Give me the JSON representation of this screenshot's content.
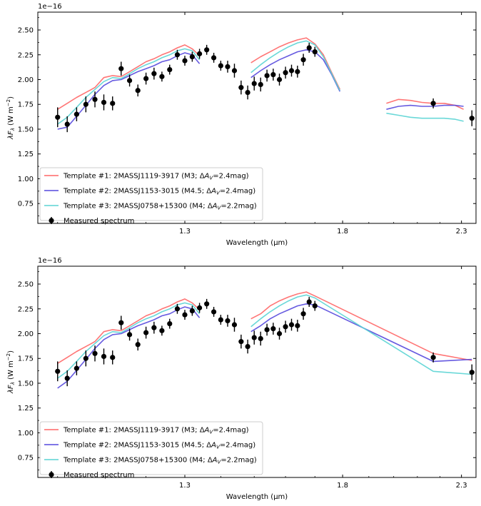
{
  "chart_data": [
    {
      "type": "line",
      "panel": "top",
      "ylabel": "λF_λ (W m^-2)",
      "ylabel_parts": {
        "lam": "λ",
        "F": "F",
        "sub": "λ",
        "unit": " (W m",
        "sup": "−2",
        "close": ")"
      },
      "xlabel": "Wavelength (μm)",
      "y_scale_label": "1e−16",
      "x_scale": "log",
      "xlim": [
        0.96,
        2.37
      ],
      "ylim": [
        0.55,
        2.68
      ],
      "x_ticks": [
        1.3,
        1.8,
        2.3
      ],
      "x_tick_labels": [
        "1.3",
        "1.8",
        "2.3"
      ],
      "y_ticks": [
        0.75,
        1.0,
        1.25,
        1.5,
        1.75,
        2.0,
        2.25,
        2.5
      ],
      "y_tick_labels": [
        "0.75",
        "1.00",
        "1.25",
        "1.50",
        "1.75",
        "2.00",
        "2.25",
        "2.50"
      ],
      "grid": false,
      "legend_position": "lower-left",
      "series": [
        {
          "name": "Template #1: 2MASSJ1119-3917 (M3; ΔA_V=2.4mag)",
          "legend": {
            "pre": "Template #1: 2MASSJ1119-3917 (M3; Δ",
            "A": "A",
            "sub": "V",
            "post": "=2.4mag)"
          },
          "color": "#ff6666",
          "segments": [
            {
              "x": [
                1.0,
                1.02,
                1.04,
                1.06,
                1.08,
                1.1,
                1.12,
                1.14,
                1.16,
                1.18,
                1.2,
                1.22,
                1.24,
                1.26,
                1.28,
                1.3,
                1.32,
                1.34
              ],
              "y": [
                1.7,
                1.76,
                1.82,
                1.87,
                1.92,
                2.02,
                2.04,
                2.03,
                2.08,
                2.13,
                2.18,
                2.21,
                2.25,
                2.28,
                2.32,
                2.35,
                2.31,
                2.24
              ]
            },
            {
              "x": [
                1.49,
                1.52,
                1.55,
                1.58,
                1.61,
                1.64,
                1.67,
                1.7,
                1.73,
                1.76,
                1.79
              ],
              "y": [
                2.17,
                2.23,
                2.28,
                2.33,
                2.37,
                2.4,
                2.42,
                2.36,
                2.25,
                2.07,
                1.9
              ]
            },
            {
              "x": [
                1.97,
                2.02,
                2.07,
                2.12,
                2.17,
                2.22,
                2.27,
                2.31
              ],
              "y": [
                1.76,
                1.8,
                1.79,
                1.77,
                1.76,
                1.76,
                1.74,
                1.7
              ]
            }
          ]
        },
        {
          "name": "Template #2: 2MASSJ1153-3015 (M4.5; ΔA_V=2.4mag)",
          "legend": {
            "pre": "Template #2: 2MASSJ1153-3015 (M4.5; Δ",
            "A": "A",
            "sub": "V",
            "post": "=2.4mag)"
          },
          "color": "#5548dd",
          "segments": [
            {
              "x": [
                1.0,
                1.02,
                1.04,
                1.06,
                1.08,
                1.1,
                1.12,
                1.14,
                1.16,
                1.18,
                1.2,
                1.22,
                1.24,
                1.26,
                1.28,
                1.3,
                1.32,
                1.34
              ],
              "y": [
                1.5,
                1.52,
                1.63,
                1.74,
                1.85,
                1.94,
                1.99,
                2.0,
                2.04,
                2.08,
                2.11,
                2.14,
                2.18,
                2.2,
                2.24,
                2.27,
                2.25,
                2.16
              ]
            },
            {
              "x": [
                1.49,
                1.52,
                1.55,
                1.58,
                1.61,
                1.64,
                1.67,
                1.7,
                1.73,
                1.76,
                1.79
              ],
              "y": [
                2.02,
                2.09,
                2.15,
                2.2,
                2.24,
                2.28,
                2.3,
                2.28,
                2.2,
                2.05,
                1.88
              ]
            },
            {
              "x": [
                1.97,
                2.02,
                2.07,
                2.12,
                2.17,
                2.22,
                2.27,
                2.31
              ],
              "y": [
                1.7,
                1.73,
                1.74,
                1.73,
                1.73,
                1.74,
                1.74,
                1.73
              ]
            }
          ]
        },
        {
          "name": "Template #3: 2MASSJ0758+15300 (M4; ΔA_V=2.2mag)",
          "legend": {
            "pre": "Template #3: 2MASSJ0758+15300 (M4; Δ",
            "A": "A",
            "sub": "V",
            "post": "=2.2mag)"
          },
          "color": "#5ad4d4",
          "segments": [
            {
              "x": [
                1.0,
                1.02,
                1.04,
                1.06,
                1.08,
                1.1,
                1.12,
                1.14,
                1.16,
                1.18,
                1.2,
                1.22,
                1.24,
                1.26,
                1.28,
                1.3,
                1.32,
                1.34
              ],
              "y": [
                1.55,
                1.62,
                1.72,
                1.82,
                1.9,
                1.98,
                2.02,
                2.01,
                2.06,
                2.11,
                2.15,
                2.18,
                2.22,
                2.25,
                2.29,
                2.31,
                2.29,
                2.2
              ]
            },
            {
              "x": [
                1.49,
                1.52,
                1.55,
                1.58,
                1.61,
                1.64,
                1.67,
                1.7,
                1.73,
                1.76,
                1.79
              ],
              "y": [
                2.07,
                2.15,
                2.22,
                2.28,
                2.33,
                2.37,
                2.39,
                2.35,
                2.23,
                2.06,
                1.89
              ]
            },
            {
              "x": [
                1.97,
                2.02,
                2.07,
                2.12,
                2.17,
                2.22,
                2.27,
                2.31
              ],
              "y": [
                1.66,
                1.64,
                1.62,
                1.61,
                1.61,
                1.61,
                1.6,
                1.58
              ]
            }
          ]
        }
      ],
      "measured": {
        "name": "Measured spectrum",
        "color": "#000000",
        "x": [
          1.0,
          1.02,
          1.04,
          1.06,
          1.08,
          1.1,
          1.12,
          1.14,
          1.16,
          1.18,
          1.2,
          1.22,
          1.24,
          1.26,
          1.28,
          1.3,
          1.32,
          1.34,
          1.36,
          1.38,
          1.4,
          1.42,
          1.44,
          1.46,
          1.48,
          1.5,
          1.52,
          1.54,
          1.56,
          1.58,
          1.6,
          1.62,
          1.64,
          1.66,
          1.68,
          1.7,
          2.17,
          2.35
        ],
        "y": [
          1.62,
          1.55,
          1.65,
          1.75,
          1.8,
          1.77,
          1.76,
          2.11,
          1.99,
          1.89,
          2.01,
          2.06,
          2.03,
          2.1,
          2.25,
          2.19,
          2.23,
          2.26,
          2.3,
          2.22,
          2.14,
          2.13,
          2.09,
          1.92,
          1.87,
          1.96,
          1.95,
          2.04,
          2.05,
          2.0,
          2.07,
          2.09,
          2.08,
          2.2,
          2.32,
          2.28,
          1.76,
          1.61
        ],
        "yerr": [
          0.1,
          0.08,
          0.07,
          0.08,
          0.08,
          0.08,
          0.07,
          0.07,
          0.06,
          0.06,
          0.06,
          0.06,
          0.05,
          0.05,
          0.05,
          0.05,
          0.05,
          0.05,
          0.05,
          0.05,
          0.05,
          0.06,
          0.07,
          0.07,
          0.07,
          0.07,
          0.07,
          0.06,
          0.06,
          0.06,
          0.06,
          0.06,
          0.06,
          0.06,
          0.05,
          0.05,
          0.05,
          0.08
        ]
      }
    },
    {
      "type": "line",
      "panel": "bottom",
      "ylabel": "λF_λ (W m^-2)",
      "ylabel_parts": {
        "lam": "λ",
        "F": "F",
        "sub": "λ",
        "unit": " (W m",
        "sup": "−2",
        "close": ")"
      },
      "xlabel": "Wavelength (μm)",
      "y_scale_label": "1e−16",
      "x_scale": "log",
      "xlim": [
        0.96,
        2.37
      ],
      "ylim": [
        0.55,
        2.68
      ],
      "x_ticks": [
        1.3,
        1.8,
        2.3
      ],
      "x_tick_labels": [
        "1.3",
        "1.8",
        "2.3"
      ],
      "y_ticks": [
        0.75,
        1.0,
        1.25,
        1.5,
        1.75,
        2.0,
        2.25,
        2.5
      ],
      "y_tick_labels": [
        "0.75",
        "1.00",
        "1.25",
        "1.50",
        "1.75",
        "2.00",
        "2.25",
        "2.50"
      ],
      "grid": false,
      "legend_position": "lower-left",
      "series": [
        {
          "name": "Template #1: 2MASSJ1119-3917 (M3; ΔA_V=2.4mag)",
          "legend": {
            "pre": "Template #1: 2MASSJ1119-3917 (M3; Δ",
            "A": "A",
            "sub": "V",
            "post": "=2.4mag)"
          },
          "color": "#ff6666",
          "segments": [
            {
              "x": [
                1.0,
                1.02,
                1.04,
                1.06,
                1.08,
                1.1,
                1.12,
                1.14,
                1.16,
                1.18,
                1.2,
                1.22,
                1.24,
                1.26,
                1.28,
                1.3,
                1.32,
                1.34
              ],
              "y": [
                1.7,
                1.76,
                1.82,
                1.87,
                1.92,
                2.02,
                2.04,
                2.03,
                2.08,
                2.13,
                2.18,
                2.21,
                2.25,
                2.28,
                2.32,
                2.35,
                2.31,
                2.24
              ]
            },
            {
              "x": [
                1.49,
                1.52,
                1.55,
                1.58,
                1.61,
                1.64,
                1.67,
                1.7,
                2.17,
                2.35
              ],
              "y": [
                2.15,
                2.2,
                2.28,
                2.33,
                2.37,
                2.4,
                2.42,
                2.38,
                1.8,
                1.73
              ]
            }
          ]
        },
        {
          "name": "Template #2: 2MASSJ1153-3015 (M4.5; ΔA_V=2.4mag)",
          "legend": {
            "pre": "Template #2: 2MASSJ1153-3015 (M4.5; Δ",
            "A": "A",
            "sub": "V",
            "post": "=2.4mag)"
          },
          "color": "#5548dd",
          "segments": [
            {
              "x": [
                1.0,
                1.02,
                1.04,
                1.06,
                1.08,
                1.1,
                1.12,
                1.14,
                1.16,
                1.18,
                1.2,
                1.22,
                1.24,
                1.26,
                1.28,
                1.3,
                1.32,
                1.34
              ],
              "y": [
                1.45,
                1.52,
                1.63,
                1.74,
                1.85,
                1.94,
                1.99,
                2.0,
                2.04,
                2.08,
                2.11,
                2.14,
                2.18,
                2.2,
                2.24,
                2.27,
                2.25,
                2.16
              ]
            },
            {
              "x": [
                1.49,
                1.52,
                1.55,
                1.58,
                1.61,
                1.64,
                1.67,
                1.7,
                2.17,
                2.35
              ],
              "y": [
                2.02,
                2.08,
                2.15,
                2.2,
                2.24,
                2.28,
                2.3,
                2.29,
                1.72,
                1.74
              ]
            }
          ]
        },
        {
          "name": "Template #3: 2MASSJ0758+15300 (M4; ΔA_V=2.2mag)",
          "legend": {
            "pre": "Template #3: 2MASSJ0758+15300 (M4; Δ",
            "A": "A",
            "sub": "V",
            "post": "=2.2mag)"
          },
          "color": "#5ad4d4",
          "segments": [
            {
              "x": [
                1.0,
                1.02,
                1.04,
                1.06,
                1.08,
                1.1,
                1.12,
                1.14,
                1.16,
                1.18,
                1.2,
                1.22,
                1.24,
                1.26,
                1.28,
                1.3,
                1.32,
                1.34
              ],
              "y": [
                1.55,
                1.62,
                1.72,
                1.82,
                1.9,
                1.98,
                2.02,
                2.01,
                2.06,
                2.11,
                2.15,
                2.18,
                2.22,
                2.25,
                2.29,
                2.31,
                2.29,
                2.2
              ]
            },
            {
              "x": [
                1.49,
                1.52,
                1.55,
                1.58,
                1.61,
                1.64,
                1.67,
                1.7,
                2.17,
                2.35
              ],
              "y": [
                2.07,
                2.15,
                2.22,
                2.28,
                2.33,
                2.37,
                2.39,
                2.36,
                1.62,
                1.59
              ]
            }
          ]
        }
      ],
      "measured": {
        "name": "Measured spectrum",
        "color": "#000000",
        "x": [
          1.0,
          1.02,
          1.04,
          1.06,
          1.08,
          1.1,
          1.12,
          1.14,
          1.16,
          1.18,
          1.2,
          1.22,
          1.24,
          1.26,
          1.28,
          1.3,
          1.32,
          1.34,
          1.36,
          1.38,
          1.4,
          1.42,
          1.44,
          1.46,
          1.48,
          1.5,
          1.52,
          1.54,
          1.56,
          1.58,
          1.6,
          1.62,
          1.64,
          1.66,
          1.68,
          1.7,
          2.17,
          2.35
        ],
        "y": [
          1.62,
          1.55,
          1.65,
          1.75,
          1.8,
          1.77,
          1.76,
          2.11,
          1.99,
          1.89,
          2.01,
          2.06,
          2.03,
          2.1,
          2.25,
          2.19,
          2.23,
          2.26,
          2.3,
          2.22,
          2.14,
          2.13,
          2.09,
          1.92,
          1.87,
          1.96,
          1.95,
          2.04,
          2.05,
          2.0,
          2.07,
          2.09,
          2.08,
          2.2,
          2.32,
          2.28,
          1.76,
          1.61
        ],
        "yerr": [
          0.1,
          0.08,
          0.07,
          0.08,
          0.08,
          0.08,
          0.07,
          0.07,
          0.06,
          0.06,
          0.06,
          0.06,
          0.05,
          0.05,
          0.05,
          0.05,
          0.05,
          0.05,
          0.05,
          0.05,
          0.05,
          0.06,
          0.07,
          0.07,
          0.07,
          0.07,
          0.07,
          0.06,
          0.06,
          0.06,
          0.06,
          0.06,
          0.06,
          0.06,
          0.05,
          0.05,
          0.05,
          0.08
        ]
      }
    }
  ]
}
